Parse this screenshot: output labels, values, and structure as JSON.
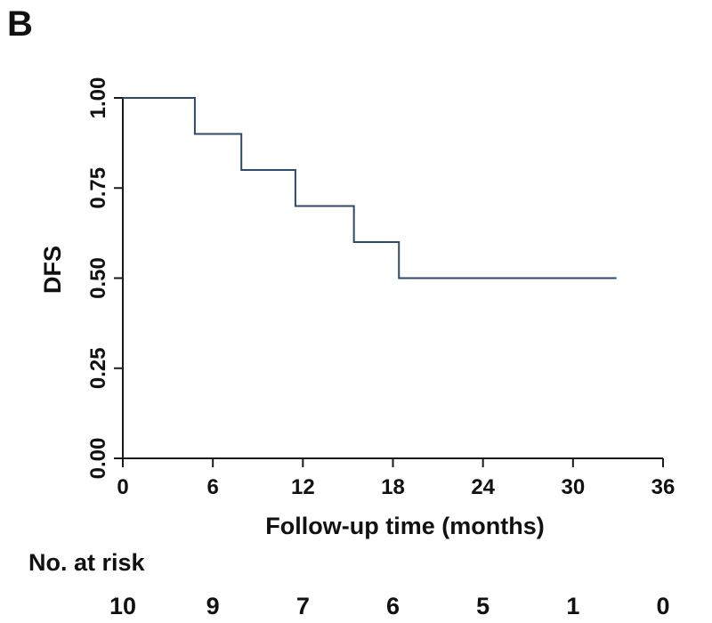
{
  "panel_label": "B",
  "chart_data": {
    "type": "line",
    "step": true,
    "xlabel": "Follow-up time (months)",
    "ylabel": "DFS",
    "xlim": [
      0,
      36
    ],
    "ylim": [
      0,
      1
    ],
    "x_ticks": [
      0,
      6,
      12,
      18,
      24,
      30,
      36
    ],
    "x_tick_labels": [
      "0",
      "6",
      "12",
      "18",
      "24",
      "30",
      "36"
    ],
    "y_ticks": [
      0,
      0.25,
      0.5,
      0.75,
      1.0
    ],
    "y_tick_labels": [
      "0.00",
      "0.25",
      "0.50",
      "0.75",
      "1.00"
    ],
    "grid": false,
    "series_color": "#2c4a6b",
    "series": [
      {
        "x": [
          0,
          4.8,
          7.9,
          11.5,
          15.4,
          18.4,
          32.9
        ],
        "y": [
          1.0,
          0.9,
          0.8,
          0.7,
          0.6,
          0.5,
          0.5
        ]
      }
    ],
    "risk_table": {
      "title": "No. at risk",
      "times": [
        0,
        6,
        12,
        18,
        24,
        30,
        36
      ],
      "counts": [
        "10",
        "9",
        "7",
        "6",
        "5",
        "1",
        "0"
      ]
    }
  }
}
